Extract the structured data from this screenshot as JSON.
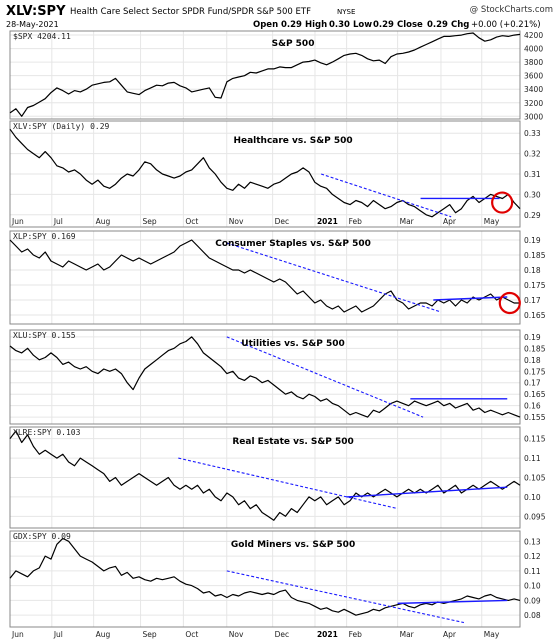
{
  "header": {
    "symbol": "XLV:SPY",
    "description": "Health Care Select Sector SPDR Fund/SPDR S&P 500 ETF",
    "exchange": "NYSE",
    "date": "28-May-2021",
    "open_label": "Open",
    "open": "0.29",
    "high_label": "High",
    "high": "0.30",
    "low_label": "Low",
    "low": "0.29",
    "close_label": "Close",
    "close": "0.29",
    "chg_label": "Chg",
    "chg": "+0.00 (+0.21%)",
    "brand": "@ StockCharts.com",
    "chg_color": "#1a9e1a"
  },
  "x_labels": [
    "Jun",
    "Jul",
    "Aug",
    "Sep",
    "Oct",
    "Nov",
    "Dec",
    "2021",
    "Feb",
    "Mar",
    "Apr",
    "May"
  ],
  "colors": {
    "trendline": "#1a1aff",
    "highlight_circle": "#e00000",
    "series": "#000000"
  },
  "chart_data": [
    {
      "type": "line",
      "label": "$SPX 4204.11",
      "title": "S&P 500",
      "yticks": [
        3000,
        3200,
        3400,
        3600,
        3800,
        4000,
        4200
      ],
      "ylim": [
        2960,
        4260
      ],
      "series": [
        {
          "name": "$SPX",
          "values": [
            3050,
            3110,
            3000,
            3130,
            3160,
            3210,
            3260,
            3350,
            3420,
            3380,
            3330,
            3380,
            3360,
            3400,
            3460,
            3480,
            3500,
            3510,
            3560,
            3460,
            3360,
            3340,
            3320,
            3380,
            3420,
            3460,
            3450,
            3490,
            3500,
            3450,
            3420,
            3360,
            3380,
            3400,
            3420,
            3280,
            3270,
            3510,
            3560,
            3580,
            3600,
            3650,
            3640,
            3670,
            3700,
            3700,
            3730,
            3720,
            3720,
            3760,
            3800,
            3810,
            3830,
            3790,
            3760,
            3800,
            3850,
            3900,
            3920,
            3930,
            3900,
            3850,
            3820,
            3830,
            3780,
            3880,
            3920,
            3930,
            3950,
            3980,
            4020,
            4060,
            4100,
            4140,
            4180,
            4180,
            4190,
            4200,
            4220,
            4230,
            4160,
            4110,
            4130,
            4170,
            4190,
            4180,
            4200,
            4210
          ]
        }
      ]
    },
    {
      "type": "line",
      "label": "XLV:SPY (Daily) 0.29",
      "title": "Healthcare vs. S&P 500",
      "yticks": [
        0.29,
        0.3,
        0.31,
        0.32,
        0.33
      ],
      "ylim": [
        0.284,
        0.336
      ],
      "series": [
        {
          "name": "XLV:SPY",
          "values": [
            0.332,
            0.328,
            0.325,
            0.322,
            0.32,
            0.318,
            0.321,
            0.318,
            0.314,
            0.313,
            0.311,
            0.312,
            0.31,
            0.307,
            0.305,
            0.307,
            0.304,
            0.303,
            0.305,
            0.308,
            0.31,
            0.309,
            0.312,
            0.316,
            0.315,
            0.312,
            0.31,
            0.309,
            0.308,
            0.309,
            0.311,
            0.312,
            0.315,
            0.318,
            0.313,
            0.31,
            0.306,
            0.303,
            0.302,
            0.305,
            0.303,
            0.306,
            0.305,
            0.304,
            0.303,
            0.305,
            0.306,
            0.308,
            0.31,
            0.311,
            0.313,
            0.311,
            0.306,
            0.304,
            0.303,
            0.3,
            0.298,
            0.296,
            0.295,
            0.297,
            0.296,
            0.294,
            0.297,
            0.295,
            0.293,
            0.294,
            0.296,
            0.297,
            0.295,
            0.294,
            0.292,
            0.29,
            0.289,
            0.291,
            0.293,
            0.295,
            0.291,
            0.293,
            0.297,
            0.299,
            0.296,
            0.298,
            0.3,
            0.299,
            0.298,
            0.3,
            0.296,
            0.293
          ]
        }
      ]
    },
    {
      "type": "line",
      "label": "XLP:SPY 0.169",
      "title": "Consumer Staples vs. S&P 500",
      "yticks": [
        0.165,
        0.17,
        0.175,
        0.18,
        0.185,
        0.19
      ],
      "ylim": [
        0.162,
        0.193
      ],
      "series": [
        {
          "name": "XLP:SPY",
          "values": [
            0.19,
            0.188,
            0.186,
            0.187,
            0.185,
            0.184,
            0.186,
            0.183,
            0.182,
            0.181,
            0.183,
            0.182,
            0.181,
            0.18,
            0.181,
            0.182,
            0.18,
            0.181,
            0.183,
            0.185,
            0.184,
            0.183,
            0.184,
            0.183,
            0.182,
            0.183,
            0.184,
            0.185,
            0.186,
            0.188,
            0.189,
            0.19,
            0.188,
            0.186,
            0.184,
            0.183,
            0.182,
            0.181,
            0.18,
            0.18,
            0.179,
            0.18,
            0.179,
            0.178,
            0.177,
            0.176,
            0.177,
            0.176,
            0.174,
            0.172,
            0.173,
            0.171,
            0.169,
            0.17,
            0.168,
            0.167,
            0.168,
            0.166,
            0.167,
            0.168,
            0.166,
            0.167,
            0.168,
            0.17,
            0.172,
            0.173,
            0.17,
            0.169,
            0.167,
            0.168,
            0.169,
            0.169,
            0.168,
            0.17,
            0.169,
            0.17,
            0.168,
            0.17,
            0.169,
            0.171,
            0.17,
            0.171,
            0.172,
            0.17,
            0.171,
            0.17,
            0.169,
            0.169
          ]
        }
      ]
    },
    {
      "type": "line",
      "label": "XLU:SPY 0.155",
      "title": "Utilities vs. S&P 500",
      "yticks": [
        0.155,
        0.16,
        0.165,
        0.17,
        0.175,
        0.18,
        0.185,
        0.19
      ],
      "ylim": [
        0.152,
        0.193
      ],
      "series": [
        {
          "name": "XLU:SPY",
          "values": [
            0.186,
            0.184,
            0.183,
            0.185,
            0.182,
            0.18,
            0.181,
            0.183,
            0.181,
            0.178,
            0.179,
            0.177,
            0.176,
            0.177,
            0.175,
            0.174,
            0.176,
            0.175,
            0.176,
            0.174,
            0.17,
            0.167,
            0.172,
            0.176,
            0.178,
            0.18,
            0.182,
            0.184,
            0.185,
            0.187,
            0.188,
            0.19,
            0.187,
            0.183,
            0.181,
            0.179,
            0.177,
            0.174,
            0.175,
            0.172,
            0.171,
            0.173,
            0.172,
            0.17,
            0.171,
            0.169,
            0.167,
            0.165,
            0.166,
            0.164,
            0.163,
            0.165,
            0.164,
            0.162,
            0.163,
            0.161,
            0.16,
            0.158,
            0.156,
            0.157,
            0.156,
            0.155,
            0.158,
            0.157,
            0.159,
            0.161,
            0.162,
            0.161,
            0.16,
            0.162,
            0.161,
            0.16,
            0.161,
            0.162,
            0.16,
            0.161,
            0.159,
            0.16,
            0.161,
            0.158,
            0.159,
            0.157,
            0.158,
            0.157,
            0.156,
            0.157,
            0.156,
            0.155
          ]
        }
      ]
    },
    {
      "type": "line",
      "label": "XLRE:SPY 0.103",
      "title": "Real Estate vs. S&P 500",
      "yticks": [
        0.095,
        0.1,
        0.105,
        0.11,
        0.115
      ],
      "ylim": [
        0.092,
        0.118
      ],
      "series": [
        {
          "name": "XLRE:SPY",
          "values": [
            0.115,
            0.117,
            0.114,
            0.116,
            0.113,
            0.111,
            0.112,
            0.111,
            0.11,
            0.111,
            0.109,
            0.108,
            0.11,
            0.109,
            0.108,
            0.107,
            0.106,
            0.104,
            0.105,
            0.103,
            0.104,
            0.105,
            0.106,
            0.105,
            0.104,
            0.103,
            0.104,
            0.105,
            0.103,
            0.102,
            0.103,
            0.102,
            0.103,
            0.101,
            0.102,
            0.1,
            0.099,
            0.101,
            0.1,
            0.098,
            0.099,
            0.097,
            0.098,
            0.096,
            0.095,
            0.094,
            0.096,
            0.095,
            0.097,
            0.096,
            0.098,
            0.1,
            0.099,
            0.1,
            0.098,
            0.099,
            0.1,
            0.098,
            0.099,
            0.101,
            0.1,
            0.101,
            0.1,
            0.101,
            0.102,
            0.101,
            0.1,
            0.101,
            0.102,
            0.101,
            0.102,
            0.101,
            0.102,
            0.103,
            0.101,
            0.102,
            0.103,
            0.101,
            0.102,
            0.103,
            0.102,
            0.103,
            0.104,
            0.103,
            0.102,
            0.103,
            0.104,
            0.103
          ]
        }
      ]
    },
    {
      "type": "line",
      "label": "GDX:SPY 0.09",
      "title": "Gold Miners vs. S&P 500",
      "yticks": [
        0.08,
        0.09,
        0.1,
        0.11,
        0.12,
        0.13
      ],
      "ylim": [
        0.072,
        0.137
      ],
      "series": [
        {
          "name": "GDX:SPY",
          "values": [
            0.105,
            0.11,
            0.108,
            0.106,
            0.11,
            0.112,
            0.12,
            0.118,
            0.128,
            0.132,
            0.13,
            0.125,
            0.12,
            0.118,
            0.116,
            0.113,
            0.11,
            0.112,
            0.113,
            0.107,
            0.109,
            0.105,
            0.106,
            0.104,
            0.103,
            0.105,
            0.104,
            0.105,
            0.106,
            0.103,
            0.101,
            0.1,
            0.098,
            0.095,
            0.096,
            0.093,
            0.094,
            0.092,
            0.094,
            0.093,
            0.095,
            0.096,
            0.095,
            0.094,
            0.095,
            0.094,
            0.096,
            0.097,
            0.092,
            0.09,
            0.089,
            0.088,
            0.086,
            0.084,
            0.085,
            0.083,
            0.082,
            0.084,
            0.082,
            0.08,
            0.081,
            0.082,
            0.084,
            0.083,
            0.085,
            0.086,
            0.087,
            0.088,
            0.086,
            0.085,
            0.087,
            0.088,
            0.087,
            0.089,
            0.088,
            0.089,
            0.09,
            0.091,
            0.093,
            0.092,
            0.091,
            0.093,
            0.094,
            0.092,
            0.091,
            0.09,
            0.091,
            0.09
          ]
        }
      ]
    }
  ]
}
